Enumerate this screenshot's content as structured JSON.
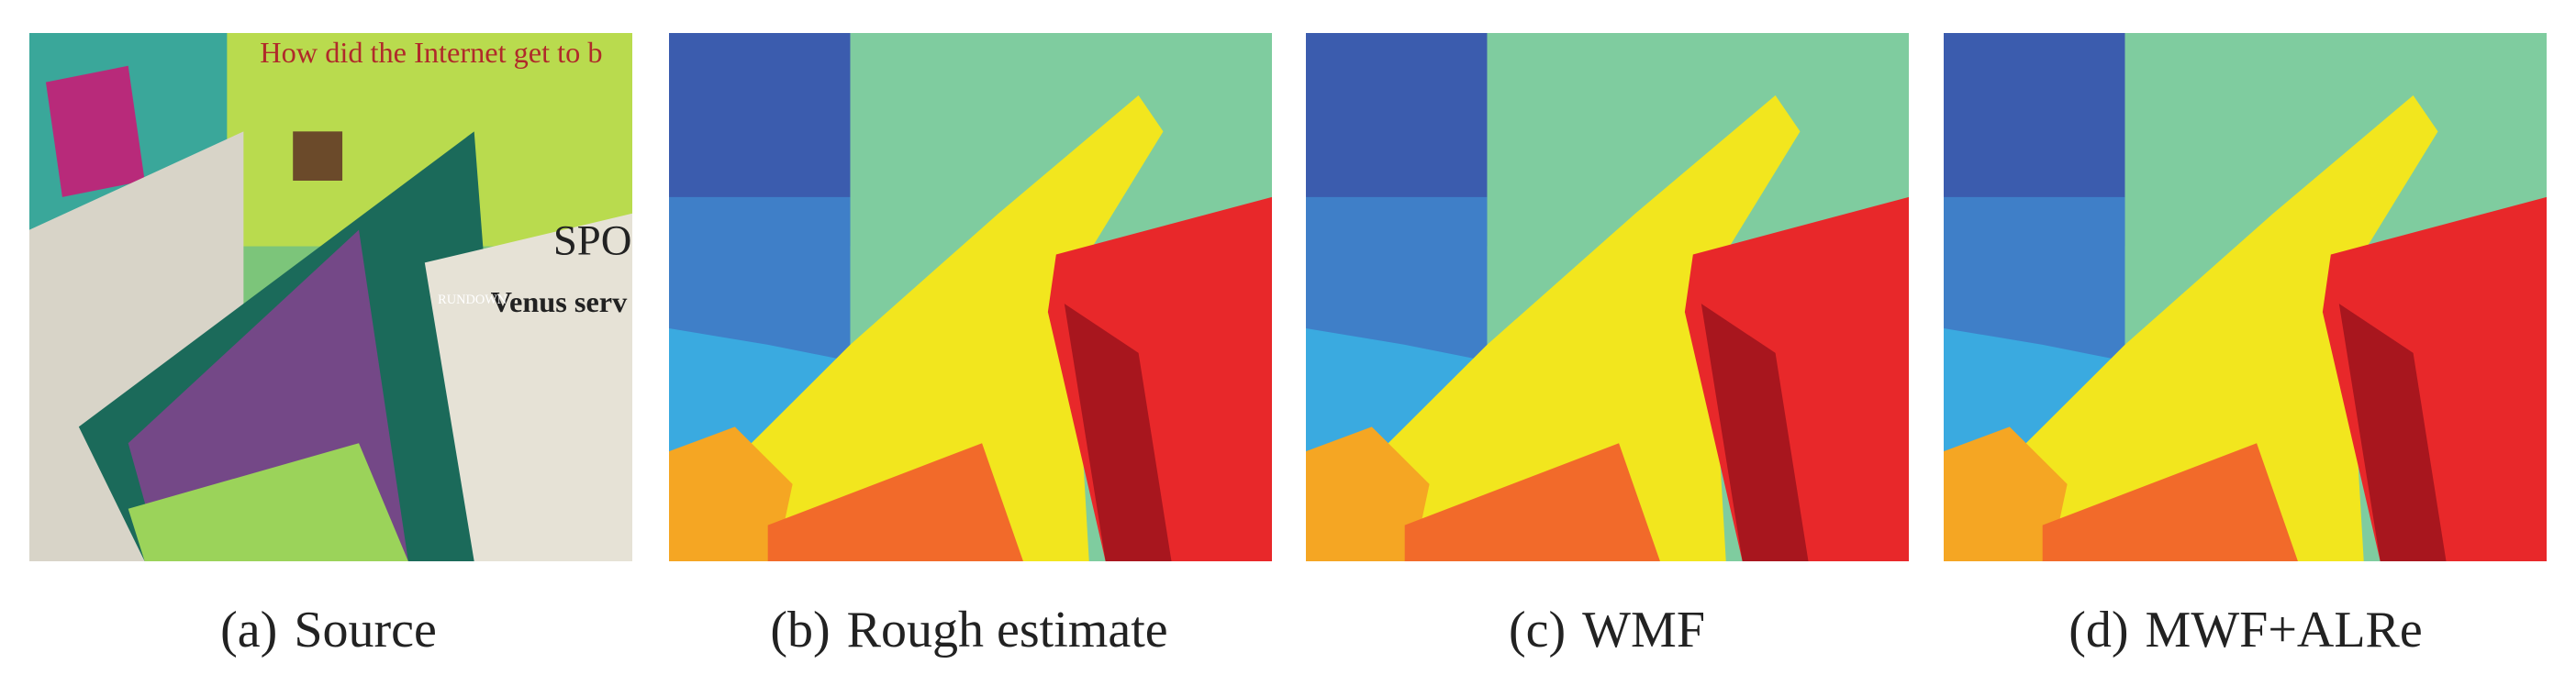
{
  "panels": [
    {
      "label": "(a)",
      "caption": "Source"
    },
    {
      "label": "(b)",
      "caption": "Rough estimate"
    },
    {
      "label": "(c)",
      "caption": "WMF"
    },
    {
      "label": "(d)",
      "caption": "MWF+ALRe"
    }
  ],
  "source_texts": [
    "How did the Internet get to b",
    "SPOR",
    "Venus serv",
    "RUNDOWN"
  ]
}
